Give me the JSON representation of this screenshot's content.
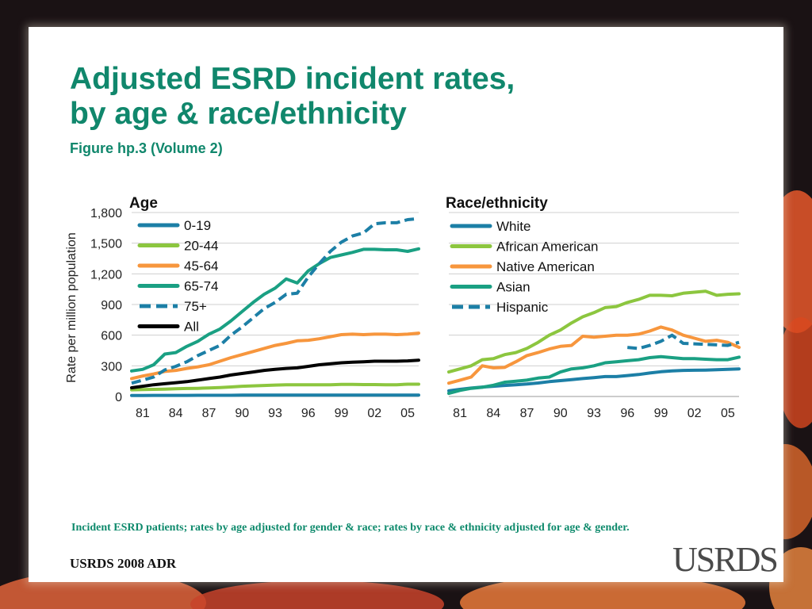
{
  "slide": {
    "title_line1": "Adjusted ESRD incident rates,",
    "title_line2": "by age & race/ethnicity",
    "subtitle": "Figure hp.3 (Volume 2)",
    "footnote": "Incident ESRD patients; rates by age adjusted for gender & race; rates by race & ethnicity adjusted for age & gender.",
    "source": "USRDS 2008 ADR",
    "logo_text": "USRDS"
  },
  "colors": {
    "title": "#10876c",
    "series_blue": "#1c7fa6",
    "series_lightgreen": "#8cc63f",
    "series_orange": "#f7963d",
    "series_teal": "#1aa083",
    "series_black": "#000000"
  },
  "chart_data": [
    {
      "type": "line",
      "title": "Age",
      "ylabel": "Rate per million population",
      "xlabel": "",
      "ylim": [
        0,
        1800
      ],
      "xlim": [
        1980,
        2006
      ],
      "yticks": [
        0,
        300,
        600,
        900,
        1200,
        1500,
        1800
      ],
      "ytick_labels": [
        "0",
        "300",
        "600",
        "900",
        "1,200",
        "1,500",
        "1,800"
      ],
      "xticks": [
        1981,
        1984,
        1987,
        1990,
        1993,
        1996,
        1999,
        2002,
        2005
      ],
      "xtick_labels": [
        "81",
        "84",
        "87",
        "90",
        "93",
        "96",
        "99",
        "02",
        "05"
      ],
      "grid": true,
      "legend_position": "top-left",
      "x": [
        1980,
        1981,
        1982,
        1983,
        1984,
        1985,
        1986,
        1987,
        1988,
        1989,
        1990,
        1991,
        1992,
        1993,
        1994,
        1995,
        1996,
        1997,
        1998,
        1999,
        2000,
        2001,
        2002,
        2003,
        2004,
        2005,
        2006
      ],
      "series": [
        {
          "name": "0-19",
          "color": "#1c7fa6",
          "style": "solid",
          "values": [
            10,
            10,
            11,
            11,
            11,
            11,
            12,
            12,
            12,
            12,
            13,
            13,
            13,
            13,
            13,
            13,
            14,
            14,
            14,
            14,
            14,
            14,
            14,
            14,
            14,
            14,
            14
          ]
        },
        {
          "name": "20-44",
          "color": "#8cc63f",
          "style": "solid",
          "values": [
            65,
            68,
            70,
            72,
            75,
            78,
            80,
            84,
            88,
            93,
            100,
            104,
            108,
            112,
            115,
            115,
            115,
            115,
            115,
            118,
            118,
            116,
            116,
            115,
            115,
            120,
            120
          ]
        },
        {
          "name": "45-64",
          "color": "#f7963d",
          "style": "solid",
          "values": [
            175,
            200,
            220,
            245,
            255,
            275,
            290,
            310,
            345,
            380,
            410,
            440,
            470,
            500,
            520,
            545,
            550,
            565,
            585,
            605,
            610,
            605,
            610,
            610,
            605,
            610,
            620
          ]
        },
        {
          "name": "65-74",
          "color": "#1aa083",
          "style": "solid",
          "values": [
            250,
            265,
            310,
            415,
            430,
            490,
            540,
            610,
            660,
            740,
            830,
            920,
            1000,
            1060,
            1150,
            1110,
            1230,
            1300,
            1360,
            1385,
            1410,
            1440,
            1440,
            1435,
            1435,
            1420,
            1445
          ]
        },
        {
          "name": "75+",
          "color": "#1c7fa6",
          "style": "dashed",
          "values": [
            130,
            160,
            190,
            260,
            295,
            340,
            400,
            450,
            500,
            600,
            680,
            770,
            860,
            920,
            1000,
            1010,
            1170,
            1300,
            1420,
            1510,
            1570,
            1600,
            1690,
            1700,
            1700,
            1730,
            1740
          ]
        },
        {
          "name": "All",
          "color": "#000000",
          "style": "solid",
          "values": [
            85,
            100,
            115,
            125,
            135,
            145,
            160,
            175,
            190,
            210,
            225,
            240,
            255,
            265,
            275,
            280,
            295,
            310,
            320,
            330,
            335,
            340,
            345,
            345,
            345,
            348,
            355
          ]
        }
      ]
    },
    {
      "type": "line",
      "title": "Race/ethnicity",
      "ylabel": "",
      "xlabel": "",
      "ylim": [
        0,
        1800
      ],
      "xlim": [
        1980,
        2006
      ],
      "yticks": [
        0,
        300,
        600,
        900,
        1200,
        1500,
        1800
      ],
      "xticks": [
        1981,
        1984,
        1987,
        1990,
        1993,
        1996,
        1999,
        2002,
        2005
      ],
      "xtick_labels": [
        "81",
        "84",
        "87",
        "90",
        "93",
        "96",
        "99",
        "02",
        "05"
      ],
      "grid": true,
      "legend_position": "top-left",
      "x": [
        1980,
        1981,
        1982,
        1983,
        1984,
        1985,
        1986,
        1987,
        1988,
        1989,
        1990,
        1991,
        1992,
        1993,
        1994,
        1995,
        1996,
        1997,
        1998,
        1999,
        2000,
        2001,
        2002,
        2003,
        2004,
        2005,
        2006
      ],
      "series": [
        {
          "name": "White",
          "color": "#1c7fa6",
          "style": "solid",
          "values": [
            55,
            70,
            82,
            92,
            100,
            108,
            115,
            122,
            132,
            145,
            155,
            165,
            175,
            185,
            195,
            195,
            205,
            215,
            230,
            242,
            250,
            255,
            257,
            258,
            262,
            265,
            270
          ]
        },
        {
          "name": "African American",
          "color": "#8cc63f",
          "style": "solid",
          "values": [
            240,
            270,
            300,
            360,
            370,
            410,
            430,
            470,
            530,
            600,
            650,
            720,
            780,
            820,
            870,
            880,
            920,
            950,
            990,
            990,
            985,
            1010,
            1020,
            1030,
            990,
            1000,
            1005
          ]
        },
        {
          "name": "Native American",
          "color": "#f7963d",
          "style": "solid",
          "values": [
            130,
            160,
            190,
            300,
            280,
            285,
            340,
            400,
            430,
            465,
            490,
            500,
            590,
            580,
            590,
            600,
            600,
            610,
            640,
            680,
            650,
            600,
            570,
            540,
            550,
            530,
            480
          ]
        },
        {
          "name": "Asian",
          "color": "#1aa083",
          "style": "solid",
          "values": [
            30,
            60,
            80,
            90,
            110,
            140,
            150,
            160,
            180,
            190,
            240,
            270,
            280,
            300,
            330,
            340,
            350,
            360,
            380,
            390,
            380,
            370,
            370,
            365,
            360,
            360,
            385
          ]
        },
        {
          "name": "Hispanic",
          "color": "#1c7fa6",
          "style": "dashed",
          "values": [
            null,
            null,
            null,
            null,
            null,
            null,
            null,
            null,
            null,
            null,
            null,
            null,
            null,
            null,
            null,
            null,
            480,
            470,
            500,
            540,
            600,
            520,
            515,
            510,
            505,
            500,
            530
          ]
        }
      ]
    }
  ]
}
